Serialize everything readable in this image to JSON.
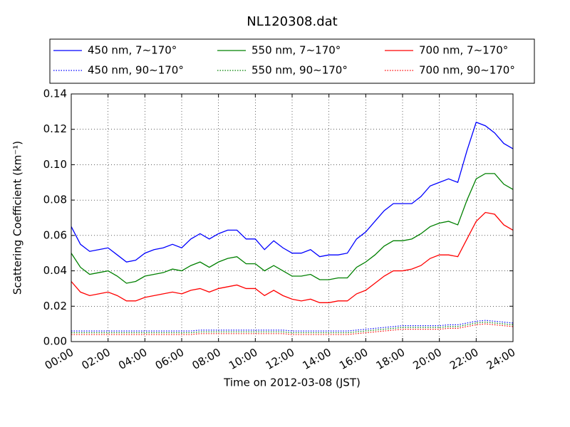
{
  "chart_data": {
    "type": "line",
    "title": "NL120308.dat",
    "xlabel": "Time on 2012-03-08 (JST)",
    "ylabel": "Scattering Coefficient (km⁻¹)",
    "x": [
      0,
      0.5,
      1,
      1.5,
      2,
      2.5,
      3,
      3.5,
      4,
      4.5,
      5,
      5.5,
      6,
      6.5,
      7,
      7.5,
      8,
      8.5,
      9,
      9.5,
      10,
      10.5,
      11,
      11.5,
      12,
      12.5,
      13,
      13.5,
      14,
      14.5,
      15,
      15.5,
      16,
      16.5,
      17,
      17.5,
      18,
      18.5,
      19,
      19.5,
      20,
      20.5,
      21,
      21.5,
      22,
      22.5,
      23,
      23.5,
      24
    ],
    "xlim": [
      0,
      24
    ],
    "xticks": [
      {
        "value": 0,
        "label": "00:00"
      },
      {
        "value": 2,
        "label": "02:00"
      },
      {
        "value": 4,
        "label": "04:00"
      },
      {
        "value": 6,
        "label": "06:00"
      },
      {
        "value": 8,
        "label": "08:00"
      },
      {
        "value": 10,
        "label": "10:00"
      },
      {
        "value": 12,
        "label": "12:00"
      },
      {
        "value": 14,
        "label": "14:00"
      },
      {
        "value": 16,
        "label": "16:00"
      },
      {
        "value": 18,
        "label": "18:00"
      },
      {
        "value": 20,
        "label": "20:00"
      },
      {
        "value": 22,
        "label": "22:00"
      },
      {
        "value": 24,
        "label": "24:00"
      }
    ],
    "ylim": [
      0,
      0.14
    ],
    "yticks": [
      {
        "value": 0,
        "label": "0.00"
      },
      {
        "value": 0.02,
        "label": "0.02"
      },
      {
        "value": 0.04,
        "label": "0.04"
      },
      {
        "value": 0.06,
        "label": "0.06"
      },
      {
        "value": 0.08,
        "label": "0.08"
      },
      {
        "value": 0.1,
        "label": "0.10"
      },
      {
        "value": 0.12,
        "label": "0.12"
      },
      {
        "value": 0.14,
        "label": "0.14"
      }
    ],
    "grid": true,
    "legend": "top",
    "series": [
      {
        "name": "450 nm, 7∼170°",
        "color": "#0000ff",
        "style": "solid",
        "values": [
          0.065,
          0.055,
          0.051,
          0.052,
          0.053,
          0.049,
          0.045,
          0.046,
          0.05,
          0.052,
          0.053,
          0.055,
          0.053,
          0.058,
          0.061,
          0.058,
          0.061,
          0.063,
          0.063,
          0.058,
          0.058,
          0.052,
          0.057,
          0.053,
          0.05,
          0.05,
          0.052,
          0.048,
          0.049,
          0.049,
          0.05,
          0.058,
          0.062,
          0.068,
          0.074,
          0.078,
          0.078,
          0.078,
          0.082,
          0.088,
          0.09,
          0.092,
          0.09,
          0.108,
          0.124,
          0.122,
          0.118,
          0.112,
          0.109
        ]
      },
      {
        "name": "450 nm, 90∼170°",
        "color": "#0000ff",
        "style": "dotted",
        "values": [
          0.006,
          0.006,
          0.006,
          0.006,
          0.006,
          0.006,
          0.006,
          0.006,
          0.006,
          0.006,
          0.006,
          0.006,
          0.006,
          0.006,
          0.0065,
          0.0065,
          0.0065,
          0.0065,
          0.0065,
          0.0065,
          0.0065,
          0.0065,
          0.0065,
          0.0065,
          0.006,
          0.006,
          0.006,
          0.006,
          0.006,
          0.006,
          0.006,
          0.0065,
          0.007,
          0.0075,
          0.008,
          0.0085,
          0.009,
          0.009,
          0.009,
          0.009,
          0.009,
          0.0095,
          0.0095,
          0.0105,
          0.0115,
          0.012,
          0.0115,
          0.011,
          0.0105
        ]
      },
      {
        "name": "550 nm, 7∼170°",
        "color": "#008000",
        "style": "solid",
        "values": [
          0.05,
          0.042,
          0.038,
          0.039,
          0.04,
          0.037,
          0.033,
          0.034,
          0.037,
          0.038,
          0.039,
          0.041,
          0.04,
          0.043,
          0.045,
          0.042,
          0.045,
          0.047,
          0.048,
          0.044,
          0.044,
          0.04,
          0.043,
          0.04,
          0.037,
          0.037,
          0.038,
          0.035,
          0.035,
          0.036,
          0.036,
          0.042,
          0.045,
          0.049,
          0.054,
          0.057,
          0.057,
          0.058,
          0.061,
          0.065,
          0.067,
          0.068,
          0.066,
          0.08,
          0.092,
          0.095,
          0.095,
          0.089,
          0.086
        ]
      },
      {
        "name": "550 nm, 90∼170°",
        "color": "#008000",
        "style": "dotted",
        "values": [
          0.005,
          0.005,
          0.005,
          0.005,
          0.005,
          0.005,
          0.005,
          0.005,
          0.005,
          0.005,
          0.005,
          0.005,
          0.005,
          0.005,
          0.0055,
          0.0055,
          0.0055,
          0.0055,
          0.0055,
          0.0055,
          0.0055,
          0.0055,
          0.0055,
          0.0055,
          0.005,
          0.005,
          0.005,
          0.005,
          0.005,
          0.005,
          0.005,
          0.0055,
          0.006,
          0.0065,
          0.007,
          0.0075,
          0.008,
          0.008,
          0.008,
          0.008,
          0.008,
          0.0085,
          0.0085,
          0.0095,
          0.0105,
          0.011,
          0.0105,
          0.01,
          0.0095
        ]
      },
      {
        "name": "700 nm, 7∼170°",
        "color": "#ff0000",
        "style": "solid",
        "values": [
          0.034,
          0.028,
          0.026,
          0.027,
          0.028,
          0.026,
          0.023,
          0.023,
          0.025,
          0.026,
          0.027,
          0.028,
          0.027,
          0.029,
          0.03,
          0.028,
          0.03,
          0.031,
          0.032,
          0.03,
          0.03,
          0.026,
          0.029,
          0.026,
          0.024,
          0.023,
          0.024,
          0.022,
          0.022,
          0.023,
          0.023,
          0.027,
          0.029,
          0.033,
          0.037,
          0.04,
          0.04,
          0.041,
          0.043,
          0.047,
          0.049,
          0.049,
          0.048,
          0.058,
          0.068,
          0.073,
          0.072,
          0.066,
          0.063
        ]
      },
      {
        "name": "700 nm, 90∼170°",
        "color": "#ff0000",
        "style": "dotted",
        "values": [
          0.004,
          0.004,
          0.004,
          0.004,
          0.004,
          0.004,
          0.004,
          0.004,
          0.004,
          0.004,
          0.004,
          0.004,
          0.004,
          0.004,
          0.0045,
          0.0045,
          0.0045,
          0.0045,
          0.0045,
          0.0045,
          0.0045,
          0.0045,
          0.0045,
          0.0045,
          0.004,
          0.004,
          0.004,
          0.004,
          0.004,
          0.004,
          0.004,
          0.0045,
          0.005,
          0.0055,
          0.006,
          0.0065,
          0.007,
          0.007,
          0.007,
          0.007,
          0.007,
          0.0075,
          0.0075,
          0.0085,
          0.0095,
          0.01,
          0.0095,
          0.009,
          0.0085
        ]
      }
    ]
  }
}
